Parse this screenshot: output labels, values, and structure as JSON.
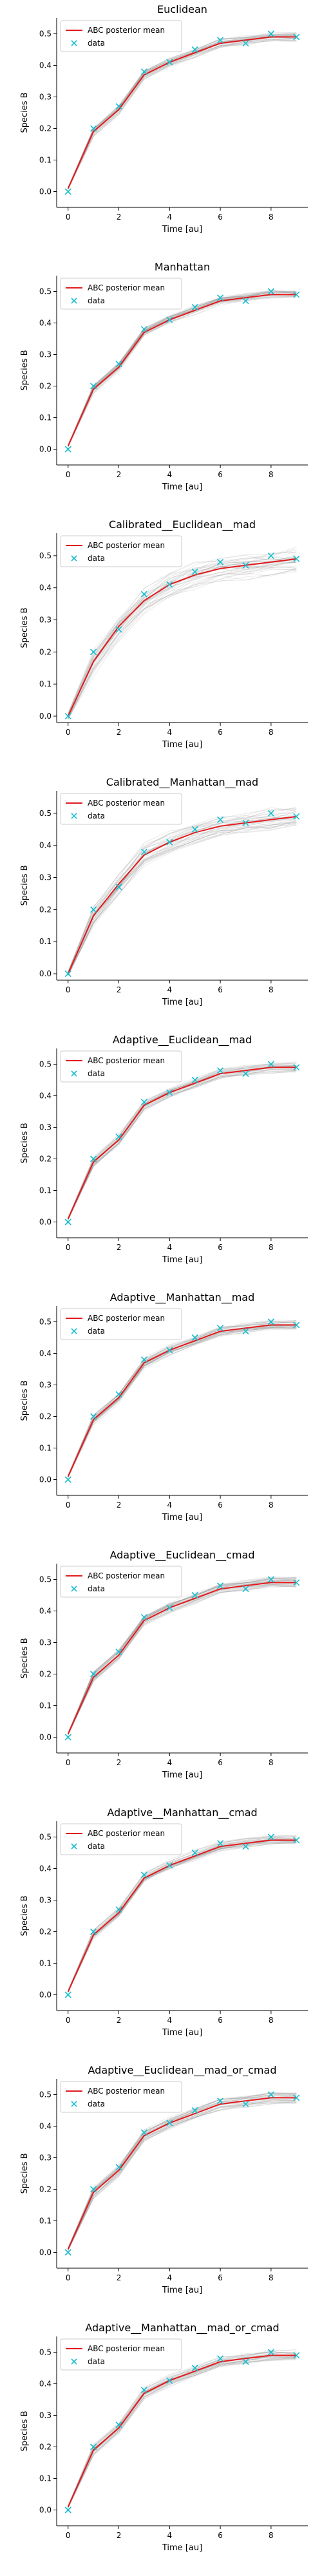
{
  "figure": {
    "rows": 10
  },
  "style": {
    "posterior_color": "#e41a1c",
    "data_color": "#17becf",
    "sample_color": "#8c8c8c"
  },
  "chart_data": [
    {
      "type": "line",
      "title": "Euclidean",
      "xlabel": "Time [au]",
      "ylabel": "Species B",
      "xlim": [
        -0.45,
        9.45
      ],
      "ylim": [
        -0.05,
        0.55
      ],
      "xticks": [
        0,
        2,
        4,
        6,
        8
      ],
      "yticks": [
        0.0,
        0.1,
        0.2,
        0.3,
        0.4,
        0.5
      ],
      "spread": 0.012,
      "legend": {
        "location": "top-left",
        "entries": [
          "ABC posterior mean",
          "data"
        ]
      },
      "series": [
        {
          "name": "ABC posterior mean",
          "style": "line",
          "x": [
            0,
            1,
            2,
            3,
            4,
            5,
            6,
            7,
            8,
            9
          ],
          "values": [
            0.01,
            0.19,
            0.26,
            0.37,
            0.41,
            0.44,
            0.47,
            0.48,
            0.49,
            0.49
          ]
        },
        {
          "name": "data",
          "style": "marker",
          "x": [
            0,
            1,
            2,
            3,
            4,
            5,
            6,
            7,
            8,
            9
          ],
          "values": [
            0.0,
            0.2,
            0.27,
            0.38,
            0.41,
            0.45,
            0.48,
            0.47,
            0.5,
            0.49
          ]
        }
      ]
    },
    {
      "type": "line",
      "title": "Manhattan",
      "xlabel": "Time [au]",
      "ylabel": "Species B",
      "xlim": [
        -0.45,
        9.45
      ],
      "ylim": [
        -0.05,
        0.55
      ],
      "xticks": [
        0,
        2,
        4,
        6,
        8
      ],
      "yticks": [
        0.0,
        0.1,
        0.2,
        0.3,
        0.4,
        0.5
      ],
      "spread": 0.012,
      "legend": {
        "location": "top-left",
        "entries": [
          "ABC posterior mean",
          "data"
        ]
      },
      "series": [
        {
          "name": "ABC posterior mean",
          "style": "line",
          "x": [
            0,
            1,
            2,
            3,
            4,
            5,
            6,
            7,
            8,
            9
          ],
          "values": [
            0.01,
            0.19,
            0.26,
            0.37,
            0.41,
            0.44,
            0.47,
            0.48,
            0.49,
            0.49
          ]
        },
        {
          "name": "data",
          "style": "marker",
          "x": [
            0,
            1,
            2,
            3,
            4,
            5,
            6,
            7,
            8,
            9
          ],
          "values": [
            0.0,
            0.2,
            0.27,
            0.38,
            0.41,
            0.45,
            0.48,
            0.47,
            0.5,
            0.49
          ]
        }
      ]
    },
    {
      "type": "line",
      "title": "Calibrated__Euclidean__mad",
      "xlabel": "Time [au]",
      "ylabel": "Species B",
      "xlim": [
        -0.45,
        9.45
      ],
      "ylim": [
        -0.02,
        0.57
      ],
      "xticks": [
        0,
        2,
        4,
        6,
        8
      ],
      "yticks": [
        0.0,
        0.1,
        0.2,
        0.3,
        0.4,
        0.5
      ],
      "spread": 0.035,
      "legend": {
        "location": "top-left",
        "entries": [
          "ABC posterior mean",
          "data"
        ]
      },
      "series": [
        {
          "name": "ABC posterior mean",
          "style": "line",
          "x": [
            0,
            1,
            2,
            3,
            4,
            5,
            6,
            7,
            8,
            9
          ],
          "values": [
            0.0,
            0.17,
            0.28,
            0.36,
            0.41,
            0.44,
            0.46,
            0.47,
            0.48,
            0.49
          ]
        },
        {
          "name": "data",
          "style": "marker",
          "x": [
            0,
            1,
            2,
            3,
            4,
            5,
            6,
            7,
            8,
            9
          ],
          "values": [
            0.0,
            0.2,
            0.27,
            0.38,
            0.41,
            0.45,
            0.48,
            0.47,
            0.5,
            0.49
          ]
        }
      ]
    },
    {
      "type": "line",
      "title": "Calibrated__Manhattan__mad",
      "xlabel": "Time [au]",
      "ylabel": "Species B",
      "xlim": [
        -0.45,
        9.45
      ],
      "ylim": [
        -0.02,
        0.57
      ],
      "xticks": [
        0,
        2,
        4,
        6,
        8
      ],
      "yticks": [
        0.0,
        0.1,
        0.2,
        0.3,
        0.4,
        0.5
      ],
      "spread": 0.028,
      "legend": {
        "location": "top-left",
        "entries": [
          "ABC posterior mean",
          "data"
        ]
      },
      "series": [
        {
          "name": "ABC posterior mean",
          "style": "line",
          "x": [
            0,
            1,
            2,
            3,
            4,
            5,
            6,
            7,
            8,
            9
          ],
          "values": [
            0.0,
            0.18,
            0.28,
            0.37,
            0.41,
            0.44,
            0.46,
            0.47,
            0.48,
            0.49
          ]
        },
        {
          "name": "data",
          "style": "marker",
          "x": [
            0,
            1,
            2,
            3,
            4,
            5,
            6,
            7,
            8,
            9
          ],
          "values": [
            0.0,
            0.2,
            0.27,
            0.38,
            0.41,
            0.45,
            0.48,
            0.47,
            0.5,
            0.49
          ]
        }
      ]
    },
    {
      "type": "line",
      "title": "Adaptive__Euclidean__mad",
      "xlabel": "Time [au]",
      "ylabel": "Species B",
      "xlim": [
        -0.45,
        9.45
      ],
      "ylim": [
        -0.05,
        0.55
      ],
      "xticks": [
        0,
        2,
        4,
        6,
        8
      ],
      "yticks": [
        0.0,
        0.1,
        0.2,
        0.3,
        0.4,
        0.5
      ],
      "spread": 0.014,
      "legend": {
        "location": "top-left",
        "entries": [
          "ABC posterior mean",
          "data"
        ]
      },
      "series": [
        {
          "name": "ABC posterior mean",
          "style": "line",
          "x": [
            0,
            1,
            2,
            3,
            4,
            5,
            6,
            7,
            8,
            9
          ],
          "values": [
            0.01,
            0.19,
            0.26,
            0.37,
            0.41,
            0.44,
            0.47,
            0.48,
            0.49,
            0.49
          ]
        },
        {
          "name": "data",
          "style": "marker",
          "x": [
            0,
            1,
            2,
            3,
            4,
            5,
            6,
            7,
            8,
            9
          ],
          "values": [
            0.0,
            0.2,
            0.27,
            0.38,
            0.41,
            0.45,
            0.48,
            0.47,
            0.5,
            0.49
          ]
        }
      ]
    },
    {
      "type": "line",
      "title": "Adaptive__Manhattan__mad",
      "xlabel": "Time [au]",
      "ylabel": "Species B",
      "xlim": [
        -0.45,
        9.45
      ],
      "ylim": [
        -0.05,
        0.55
      ],
      "xticks": [
        0,
        2,
        4,
        6,
        8
      ],
      "yticks": [
        0.0,
        0.1,
        0.2,
        0.3,
        0.4,
        0.5
      ],
      "spread": 0.014,
      "legend": {
        "location": "top-left",
        "entries": [
          "ABC posterior mean",
          "data"
        ]
      },
      "series": [
        {
          "name": "ABC posterior mean",
          "style": "line",
          "x": [
            0,
            1,
            2,
            3,
            4,
            5,
            6,
            7,
            8,
            9
          ],
          "values": [
            0.01,
            0.19,
            0.26,
            0.37,
            0.41,
            0.44,
            0.47,
            0.48,
            0.49,
            0.49
          ]
        },
        {
          "name": "data",
          "style": "marker",
          "x": [
            0,
            1,
            2,
            3,
            4,
            5,
            6,
            7,
            8,
            9
          ],
          "values": [
            0.0,
            0.2,
            0.27,
            0.38,
            0.41,
            0.45,
            0.48,
            0.47,
            0.5,
            0.49
          ]
        }
      ]
    },
    {
      "type": "line",
      "title": "Adaptive__Euclidean__cmad",
      "xlabel": "Time [au]",
      "ylabel": "Species B",
      "xlim": [
        -0.45,
        9.45
      ],
      "ylim": [
        -0.05,
        0.55
      ],
      "xticks": [
        0,
        2,
        4,
        6,
        8
      ],
      "yticks": [
        0.0,
        0.1,
        0.2,
        0.3,
        0.4,
        0.5
      ],
      "spread": 0.014,
      "legend": {
        "location": "top-left",
        "entries": [
          "ABC posterior mean",
          "data"
        ]
      },
      "series": [
        {
          "name": "ABC posterior mean",
          "style": "line",
          "x": [
            0,
            1,
            2,
            3,
            4,
            5,
            6,
            7,
            8,
            9
          ],
          "values": [
            0.01,
            0.19,
            0.26,
            0.37,
            0.41,
            0.44,
            0.47,
            0.48,
            0.49,
            0.49
          ]
        },
        {
          "name": "data",
          "style": "marker",
          "x": [
            0,
            1,
            2,
            3,
            4,
            5,
            6,
            7,
            8,
            9
          ],
          "values": [
            0.0,
            0.2,
            0.27,
            0.38,
            0.41,
            0.45,
            0.48,
            0.47,
            0.5,
            0.49
          ]
        }
      ]
    },
    {
      "type": "line",
      "title": "Adaptive__Manhattan__cmad",
      "xlabel": "Time [au]",
      "ylabel": "Species B",
      "xlim": [
        -0.45,
        9.45
      ],
      "ylim": [
        -0.05,
        0.55
      ],
      "xticks": [
        0,
        2,
        4,
        6,
        8
      ],
      "yticks": [
        0.0,
        0.1,
        0.2,
        0.3,
        0.4,
        0.5
      ],
      "spread": 0.014,
      "legend": {
        "location": "top-left",
        "entries": [
          "ABC posterior mean",
          "data"
        ]
      },
      "series": [
        {
          "name": "ABC posterior mean",
          "style": "line",
          "x": [
            0,
            1,
            2,
            3,
            4,
            5,
            6,
            7,
            8,
            9
          ],
          "values": [
            0.01,
            0.19,
            0.26,
            0.37,
            0.41,
            0.44,
            0.47,
            0.48,
            0.49,
            0.49
          ]
        },
        {
          "name": "data",
          "style": "marker",
          "x": [
            0,
            1,
            2,
            3,
            4,
            5,
            6,
            7,
            8,
            9
          ],
          "values": [
            0.0,
            0.2,
            0.27,
            0.38,
            0.41,
            0.45,
            0.48,
            0.47,
            0.5,
            0.49
          ]
        }
      ]
    },
    {
      "type": "line",
      "title": "Adaptive__Euclidean__mad_or_cmad",
      "xlabel": "Time [au]",
      "ylabel": "Species B",
      "xlim": [
        -0.45,
        9.45
      ],
      "ylim": [
        -0.05,
        0.55
      ],
      "xticks": [
        0,
        2,
        4,
        6,
        8
      ],
      "yticks": [
        0.0,
        0.1,
        0.2,
        0.3,
        0.4,
        0.5
      ],
      "spread": 0.015,
      "legend": {
        "location": "top-left",
        "entries": [
          "ABC posterior mean",
          "data"
        ]
      },
      "series": [
        {
          "name": "ABC posterior mean",
          "style": "line",
          "x": [
            0,
            1,
            2,
            3,
            4,
            5,
            6,
            7,
            8,
            9
          ],
          "values": [
            0.01,
            0.19,
            0.26,
            0.37,
            0.41,
            0.44,
            0.47,
            0.48,
            0.49,
            0.49
          ]
        },
        {
          "name": "data",
          "style": "marker",
          "x": [
            0,
            1,
            2,
            3,
            4,
            5,
            6,
            7,
            8,
            9
          ],
          "values": [
            0.0,
            0.2,
            0.27,
            0.38,
            0.41,
            0.45,
            0.48,
            0.47,
            0.5,
            0.49
          ]
        }
      ]
    },
    {
      "type": "line",
      "title": "Adaptive__Manhattan__mad_or_cmad",
      "xlabel": "Time [au]",
      "ylabel": "Species B",
      "xlim": [
        -0.45,
        9.45
      ],
      "ylim": [
        -0.05,
        0.55
      ],
      "xticks": [
        0,
        2,
        4,
        6,
        8
      ],
      "yticks": [
        0.0,
        0.1,
        0.2,
        0.3,
        0.4,
        0.5
      ],
      "spread": 0.015,
      "legend": {
        "location": "top-left",
        "entries": [
          "ABC posterior mean",
          "data"
        ]
      },
      "series": [
        {
          "name": "ABC posterior mean",
          "style": "line",
          "x": [
            0,
            1,
            2,
            3,
            4,
            5,
            6,
            7,
            8,
            9
          ],
          "values": [
            0.01,
            0.19,
            0.26,
            0.37,
            0.41,
            0.44,
            0.47,
            0.48,
            0.49,
            0.49
          ]
        },
        {
          "name": "data",
          "style": "marker",
          "x": [
            0,
            1,
            2,
            3,
            4,
            5,
            6,
            7,
            8,
            9
          ],
          "values": [
            0.0,
            0.2,
            0.27,
            0.38,
            0.41,
            0.45,
            0.48,
            0.47,
            0.5,
            0.49
          ]
        }
      ]
    }
  ]
}
